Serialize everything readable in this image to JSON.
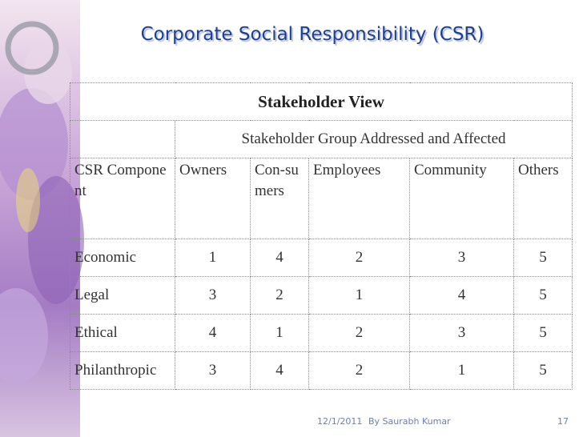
{
  "title": "Corporate Social Responsibility (CSR)",
  "table": {
    "caption": "Stakeholder View",
    "group_header": "Stakeholder Group Addressed and Affected",
    "columns": [
      "CSR Component",
      "Owners",
      "Con-sumers",
      "Employees",
      "Community",
      "Others"
    ],
    "rows": [
      [
        "Economic",
        1,
        4,
        2,
        3,
        5
      ],
      [
        "Legal",
        3,
        2,
        1,
        4,
        5
      ],
      [
        "Ethical",
        4,
        1,
        2,
        3,
        5
      ],
      [
        "Philanthropic",
        3,
        4,
        2,
        1,
        5
      ]
    ]
  },
  "footer": {
    "date": "12/1/2011",
    "author": "By Saurabh Kumar",
    "page": "17"
  }
}
